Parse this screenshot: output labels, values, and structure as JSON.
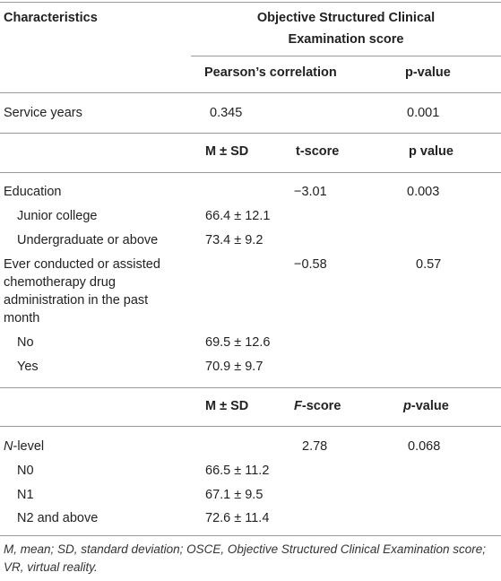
{
  "header": {
    "characteristics": "Characteristics",
    "osce_line1": "Objective Structured Clinical",
    "osce_line2": "Examination score",
    "pearson": "Pearson’s correlation",
    "pvalue": "p-value"
  },
  "service": {
    "label": "Service years",
    "r": "0.345",
    "p": "0.001"
  },
  "section2_header": {
    "msd": "M ± SD",
    "tscore": "t-score",
    "pvalue": "p value"
  },
  "education": {
    "label": "Education",
    "t": "−3.01",
    "p": "0.003",
    "rows": [
      {
        "label": "Junior college",
        "msd": "66.4 ± 12.1"
      },
      {
        "label": "Undergraduate or above",
        "msd": "73.4 ± 9.2"
      }
    ]
  },
  "chemo": {
    "label_line1": "Ever conducted or assisted",
    "label_line2": "chemotherapy drug",
    "label_line3": "administration in the past",
    "label_line4": "month",
    "t": "−0.58",
    "p": "0.57",
    "rows": [
      {
        "label": "No",
        "msd": "69.5 ± 12.6"
      },
      {
        "label": "Yes",
        "msd": "70.9 ± 9.7"
      }
    ]
  },
  "section3_header": {
    "msd": "M ± SD",
    "fscore_f": "F",
    "fscore_rest": "-score",
    "pvalue_p": "p",
    "pvalue_rest": "-value"
  },
  "nlevel": {
    "label_n": "N",
    "label_rest": "-level",
    "f": "2.78",
    "p": "0.068",
    "rows": [
      {
        "label": "N0",
        "msd": "66.5 ± 11.2"
      },
      {
        "label": "N1",
        "msd": "67.1 ± 9.5"
      },
      {
        "label": "N2 and above",
        "msd": "72.6 ± 11.4"
      }
    ]
  },
  "footnote": {
    "line1": "M, mean; SD, standard deviation; OSCE, Objective Structured Clinical Examination score;",
    "line2": "VR, virtual reality."
  }
}
